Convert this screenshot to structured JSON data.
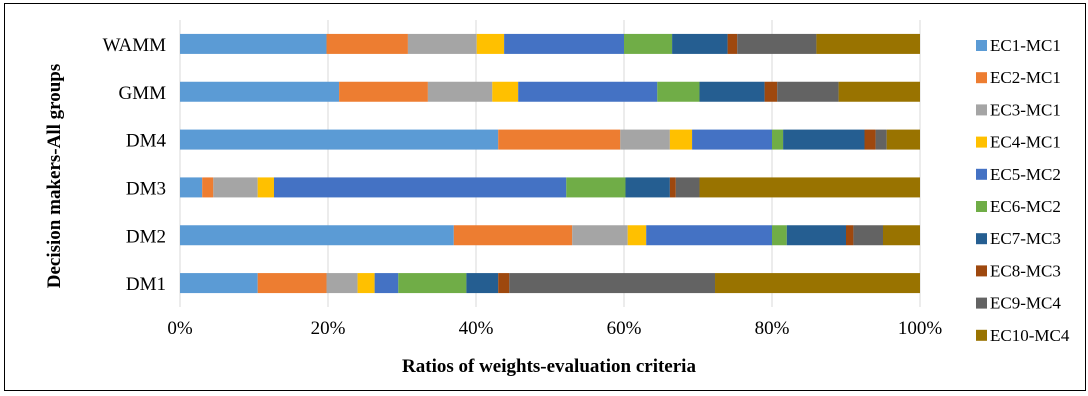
{
  "chart_data": {
    "type": "bar",
    "orientation": "horizontal",
    "stacked": "100%",
    "categories": [
      "DM1",
      "DM2",
      "DM3",
      "DM4",
      "GMM",
      "WAMM"
    ],
    "xlabel": "Ratios of weights-evaluation criteria",
    "ylabel": "Decision makers-All groups",
    "xlim": [
      0,
      100
    ],
    "xticks": [
      "0%",
      "20%",
      "40%",
      "60%",
      "80%",
      "100%"
    ],
    "grid": true,
    "legend_position": "right",
    "series": [
      {
        "name": "EC1-MC1",
        "color": "#5B9BD5",
        "values": [
          10.5,
          37.0,
          3.0,
          43.0,
          21.5,
          19.8
        ]
      },
      {
        "name": "EC2-MC1",
        "color": "#ED7D31",
        "values": [
          9.3,
          16.0,
          1.5,
          16.5,
          12.0,
          11.0
        ]
      },
      {
        "name": "EC3-MC1",
        "color": "#A5A5A5",
        "values": [
          4.2,
          7.5,
          6.0,
          6.7,
          8.7,
          9.3
        ]
      },
      {
        "name": "EC4-MC1",
        "color": "#FFC000",
        "values": [
          2.3,
          2.5,
          2.2,
          3.0,
          3.5,
          3.7
        ]
      },
      {
        "name": "EC5-MC2",
        "color": "#4472C4",
        "values": [
          3.2,
          17.0,
          39.5,
          10.8,
          18.8,
          16.2
        ]
      },
      {
        "name": "EC6-MC2",
        "color": "#70AD47",
        "values": [
          9.2,
          2.0,
          8.0,
          1.5,
          5.7,
          6.5
        ]
      },
      {
        "name": "EC7-MC3",
        "color": "#255E91",
        "values": [
          4.3,
          8.0,
          6.0,
          11.0,
          8.8,
          7.5
        ]
      },
      {
        "name": "EC8-MC3",
        "color": "#9E480E",
        "values": [
          1.5,
          1.0,
          0.8,
          1.5,
          1.7,
          1.3
        ]
      },
      {
        "name": "EC9-MC4",
        "color": "#636363",
        "values": [
          27.8,
          4.0,
          3.2,
          1.5,
          8.3,
          10.7
        ]
      },
      {
        "name": "EC10-MC4",
        "color": "#997300",
        "values": [
          27.7,
          5.0,
          29.8,
          4.5,
          11.0,
          14.0
        ]
      }
    ]
  }
}
